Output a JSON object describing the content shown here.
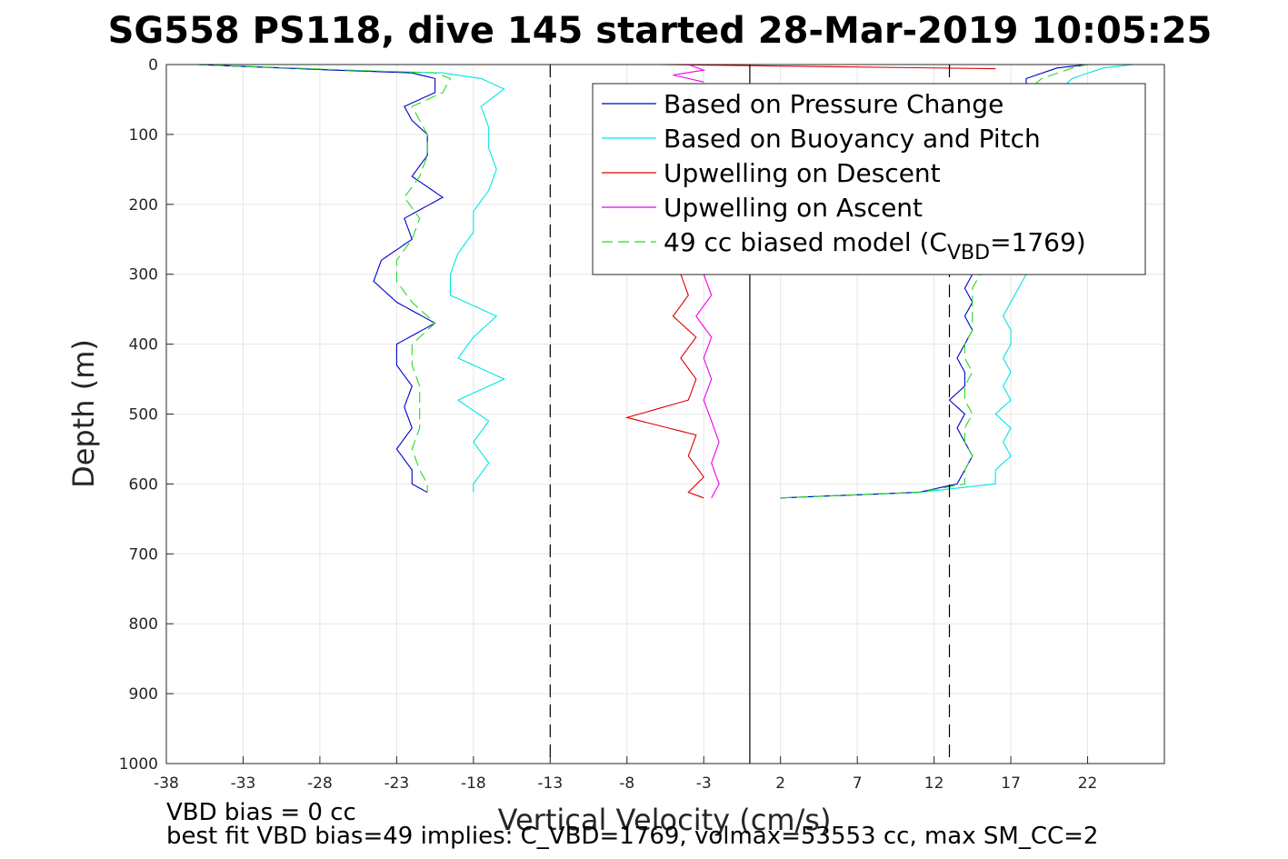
{
  "chart_data": {
    "type": "line",
    "title": "SG558 PS118, dive 145 started 28-Mar-2019 10:05:25",
    "xlabel": "Vertical Velocity (cm/s)",
    "ylabel": "Depth (m)",
    "xlim": [
      -38,
      27
    ],
    "ylim": [
      0,
      1000
    ],
    "y_reversed": true,
    "grid": true,
    "x_ticks": [
      -38,
      -33,
      -28,
      -23,
      -18,
      -13,
      -8,
      -3,
      2,
      7,
      12,
      17,
      22
    ],
    "y_ticks": [
      0,
      100,
      200,
      300,
      400,
      500,
      600,
      700,
      800,
      900,
      1000
    ],
    "x_tick_labels": [
      "-38",
      "-33",
      "-28",
      "-23",
      "-18",
      "-13",
      "-8",
      "-3",
      "2",
      "7",
      "12",
      "17",
      "22"
    ],
    "y_tick_labels": [
      "0",
      "100",
      "200",
      "300",
      "400",
      "500",
      "600",
      "700",
      "800",
      "900",
      "1000"
    ],
    "reference_lines": [
      {
        "x": -13,
        "style": "dashed",
        "color": "#000000"
      },
      {
        "x": 0,
        "style": "solid",
        "color": "#000000"
      },
      {
        "x": 13,
        "style": "dashed",
        "color": "#000000"
      }
    ],
    "legend": {
      "placement": "top-right",
      "entries": [
        {
          "label": "Based on Pressure Change",
          "color": "#0000cc",
          "style": "solid"
        },
        {
          "label": "Based on Buoyancy and Pitch",
          "color": "#00e5e5",
          "style": "solid"
        },
        {
          "label": "Upwelling on Descent",
          "color": "#dd0000",
          "style": "solid"
        },
        {
          "label": "Upwelling on Ascent",
          "color": "#ee00ee",
          "style": "solid"
        },
        {
          "label_prefix": "49 cc biased model (C",
          "label_sub": "VBD",
          "label_suffix": "=1769)",
          "color": "#22dd22",
          "style": "dashed"
        }
      ]
    },
    "series": [
      {
        "name": "Based on Pressure Change",
        "color": "#0000cc",
        "descent": {
          "depth": [
            0,
            8,
            12,
            20,
            40,
            60,
            80,
            100,
            130,
            160,
            190,
            220,
            250,
            280,
            310,
            340,
            370,
            400,
            430,
            460,
            490,
            520,
            550,
            580,
            600,
            612
          ],
          "velocity": [
            -36,
            -27,
            -22,
            -20.5,
            -20.5,
            -22.5,
            -22,
            -21,
            -21,
            -22,
            -20,
            -22.5,
            -22,
            -24,
            -24.5,
            -23,
            -20.5,
            -23,
            -23,
            -22,
            -22.5,
            -22,
            -23,
            -22,
            -22,
            -21
          ]
        },
        "ascent": {
          "depth": [
            620,
            612,
            600,
            580,
            560,
            540,
            520,
            500,
            480,
            460,
            440,
            420,
            400,
            380,
            360,
            340,
            320,
            300,
            80,
            40,
            20,
            5,
            0
          ],
          "velocity": [
            2,
            11,
            13.5,
            14,
            14.5,
            14,
            13.5,
            14,
            13,
            14,
            14,
            13.5,
            14,
            14.5,
            14,
            14.5,
            14,
            14.5,
            17,
            18,
            18,
            20,
            22
          ]
        }
      },
      {
        "name": "Based on Buoyancy and Pitch",
        "color": "#00e5e5",
        "descent": {
          "depth": [
            0,
            8,
            12,
            20,
            35,
            60,
            90,
            120,
            150,
            180,
            210,
            240,
            270,
            300,
            330,
            360,
            390,
            420,
            450,
            480,
            510,
            540,
            570,
            600,
            612
          ],
          "velocity": [
            -36,
            -27,
            -20,
            -17.5,
            -16,
            -17.5,
            -17,
            -17,
            -16.5,
            -17,
            -18,
            -18,
            -19,
            -19.5,
            -19.5,
            -16.5,
            -18,
            -19,
            -16,
            -19,
            -17,
            -18,
            -17,
            -18,
            -18
          ]
        },
        "ascent": {
          "depth": [
            620,
            612,
            600,
            580,
            560,
            540,
            520,
            500,
            480,
            460,
            440,
            420,
            400,
            380,
            360,
            340,
            320,
            300,
            80,
            40,
            20,
            5,
            0
          ],
          "velocity": [
            2,
            11,
            16,
            16,
            17,
            16.5,
            17,
            16,
            17,
            16.5,
            17,
            16.5,
            17,
            17,
            16.5,
            17,
            17.5,
            18,
            19,
            20,
            21,
            23,
            25
          ]
        }
      },
      {
        "name": "Upwelling on Descent",
        "color": "#dd0000",
        "profile": {
          "depth": [
            300,
            330,
            360,
            390,
            420,
            450,
            480,
            505,
            530,
            560,
            590,
            612,
            620
          ],
          "velocity": [
            -4.5,
            -4,
            -5,
            -3.5,
            -4.5,
            -3.5,
            -4,
            -8,
            -3.5,
            -4,
            -3,
            -4,
            -3
          ]
        },
        "surface": {
          "depth": [
            0,
            3,
            6
          ],
          "velocity": [
            -6,
            5,
            16
          ]
        }
      },
      {
        "name": "Upwelling on Ascent",
        "color": "#ee00ee",
        "profile": {
          "depth": [
            300,
            330,
            360,
            390,
            420,
            450,
            480,
            510,
            540,
            570,
            600,
            620
          ],
          "velocity": [
            -3,
            -2.5,
            -3.5,
            -2.5,
            -3,
            -2.5,
            -3,
            -2.5,
            -2,
            -2.5,
            -2,
            -2.5
          ]
        },
        "surface": {
          "depth": [
            0,
            8,
            15,
            25
          ],
          "velocity": [
            -4,
            -3,
            -5,
            -3
          ]
        }
      },
      {
        "name": "49 cc biased model (C_VBD=1769)",
        "color": "#22dd22",
        "descent": {
          "depth": [
            0,
            8,
            12,
            20,
            40,
            60,
            80,
            100,
            130,
            160,
            190,
            220,
            250,
            280,
            310,
            340,
            370,
            400,
            430,
            460,
            490,
            520,
            550,
            580,
            600,
            612
          ],
          "velocity": [
            -36,
            -26,
            -20.5,
            -19.5,
            -20,
            -22,
            -21.5,
            -21,
            -21,
            -21.5,
            -22.5,
            -21.5,
            -22,
            -23,
            -23,
            -22,
            -20.5,
            -22,
            -22,
            -21.5,
            -21.5,
            -21.5,
            -22,
            -21.5,
            -21,
            -21
          ]
        },
        "ascent": {
          "depth": [
            620,
            612,
            600,
            580,
            560,
            540,
            520,
            500,
            480,
            460,
            440,
            420,
            400,
            380,
            360,
            340,
            320,
            300,
            80,
            40,
            20,
            5,
            0
          ],
          "velocity": [
            2,
            11,
            14,
            14,
            14.5,
            14,
            14,
            14.5,
            14,
            14,
            14.5,
            14,
            14,
            14.5,
            14.5,
            14.5,
            14.5,
            15,
            17,
            18,
            19,
            21,
            22
          ]
        }
      }
    ]
  },
  "footer": {
    "line1": "VBD bias = 0 cc",
    "line2": "best fit VBD bias=49 implies: C_VBD=1769, volmax=53553 cc, max SM_CC=2"
  }
}
